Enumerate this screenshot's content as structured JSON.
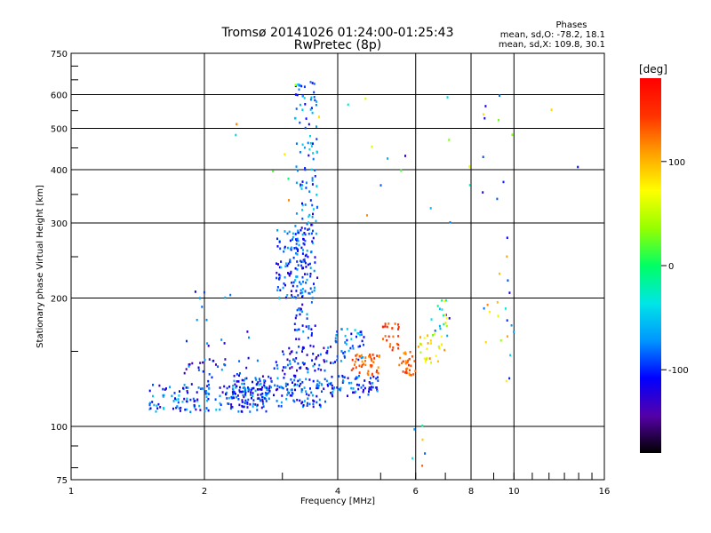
{
  "chart_data": {
    "type": "scatter",
    "title": "Tromsø 20141026 01:24:00-01:25:43",
    "subtitle": "RwPretec (8p)",
    "xlabel": "Frequency [MHz]",
    "ylabel": "Stationary phase Virtual Height [km]",
    "x_scale": "log",
    "y_scale": "log",
    "xlim": [
      1,
      16
    ],
    "ylim": [
      75,
      750
    ],
    "x_ticks": [
      1,
      2,
      4,
      6,
      8,
      10,
      16
    ],
    "y_ticks": [
      75,
      100,
      200,
      300,
      400,
      500,
      600,
      750
    ],
    "grid": true,
    "stats": {
      "heading": "Phases",
      "line_o": "mean, sd,O: -78.2, 18.1",
      "line_x": "mean, sd,X: 109.8, 30.1"
    },
    "colorbar": {
      "label": "[deg]",
      "range": [
        -180,
        180
      ],
      "ticks": [
        100,
        0,
        -100
      ],
      "colors": [
        "#000000",
        "#5500aa",
        "#0000ff",
        "#0096ff",
        "#00e6e6",
        "#00ff64",
        "#96ff00",
        "#ffff00",
        "#ffa000",
        "#ff3200",
        "#ff0000"
      ]
    },
    "series": [
      {
        "clusters": [
          {
            "x": [
              1.5,
              2.8
            ],
            "y": [
              108,
              126
            ],
            "n": 170,
            "phase": [
              -140,
              -40
            ]
          },
          {
            "x": [
              2.3,
              3.8
            ],
            "y": [
              111,
              130
            ],
            "n": 150,
            "phase": [
              -130,
              -60
            ]
          },
          {
            "x": [
              3.8,
              5.0
            ],
            "y": [
              117,
              132
            ],
            "n": 70,
            "phase": [
              -130,
              -60
            ]
          },
          {
            "x": [
              1.8,
              3.6
            ],
            "y": [
              122,
              145
            ],
            "n": 80,
            "phase": [
              -140,
              -60
            ]
          },
          {
            "x": [
              3.0,
              4.0
            ],
            "y": [
              135,
              155
            ],
            "n": 60,
            "phase": [
              -150,
              -70
            ]
          },
          {
            "x": [
              2.9,
              3.4
            ],
            "y": [
              200,
              290
            ],
            "n": 110,
            "phase": [
              -130,
              -50
            ]
          },
          {
            "x": [
              3.2,
              3.6
            ],
            "y": [
              160,
              300
            ],
            "n": 90,
            "phase": [
              -130,
              -60
            ]
          },
          {
            "x": [
              3.2,
              3.6
            ],
            "y": [
              300,
              650
            ],
            "n": 90,
            "phase": [
              -120,
              -40
            ]
          },
          {
            "x": [
              3.9,
              4.6
            ],
            "y": [
              140,
              170
            ],
            "n": 40,
            "phase": [
              -110,
              -40
            ]
          },
          {
            "x": [
              4.3,
              5.0
            ],
            "y": [
              132,
              148
            ],
            "n": 45,
            "phase": [
              110,
              150
            ]
          },
          {
            "x": [
              5.0,
              5.5
            ],
            "y": [
              150,
              175
            ],
            "n": 25,
            "phase": [
              120,
              160
            ]
          },
          {
            "x": [
              5.5,
              6.0
            ],
            "y": [
              132,
              150
            ],
            "n": 30,
            "phase": [
              110,
              150
            ]
          },
          {
            "x": [
              6.0,
              7.0
            ],
            "y": [
              140,
              165
            ],
            "n": 25,
            "phase": [
              40,
              120
            ]
          },
          {
            "x": [
              6.5,
              7.2
            ],
            "y": [
              160,
              200
            ],
            "n": 20,
            "phase": [
              -120,
              90
            ]
          },
          {
            "x": [
              8.5,
              10.0
            ],
            "y": [
              120,
              620
            ],
            "n": 30,
            "phase": [
              -130,
              120
            ]
          },
          {
            "x": [
              1.8,
              2.6
            ],
            "y": [
              150,
              210
            ],
            "n": 15,
            "phase": [
              -140,
              -60
            ]
          },
          {
            "x": [
              5.8,
              6.5
            ],
            "y": [
              78,
              105
            ],
            "n": 6,
            "phase": [
              -100,
              140
            ]
          },
          {
            "x": [
              2.2,
              15.5
            ],
            "y": [
              300,
              650
            ],
            "n": 25,
            "phase": [
              -130,
              130
            ]
          }
        ]
      }
    ]
  }
}
